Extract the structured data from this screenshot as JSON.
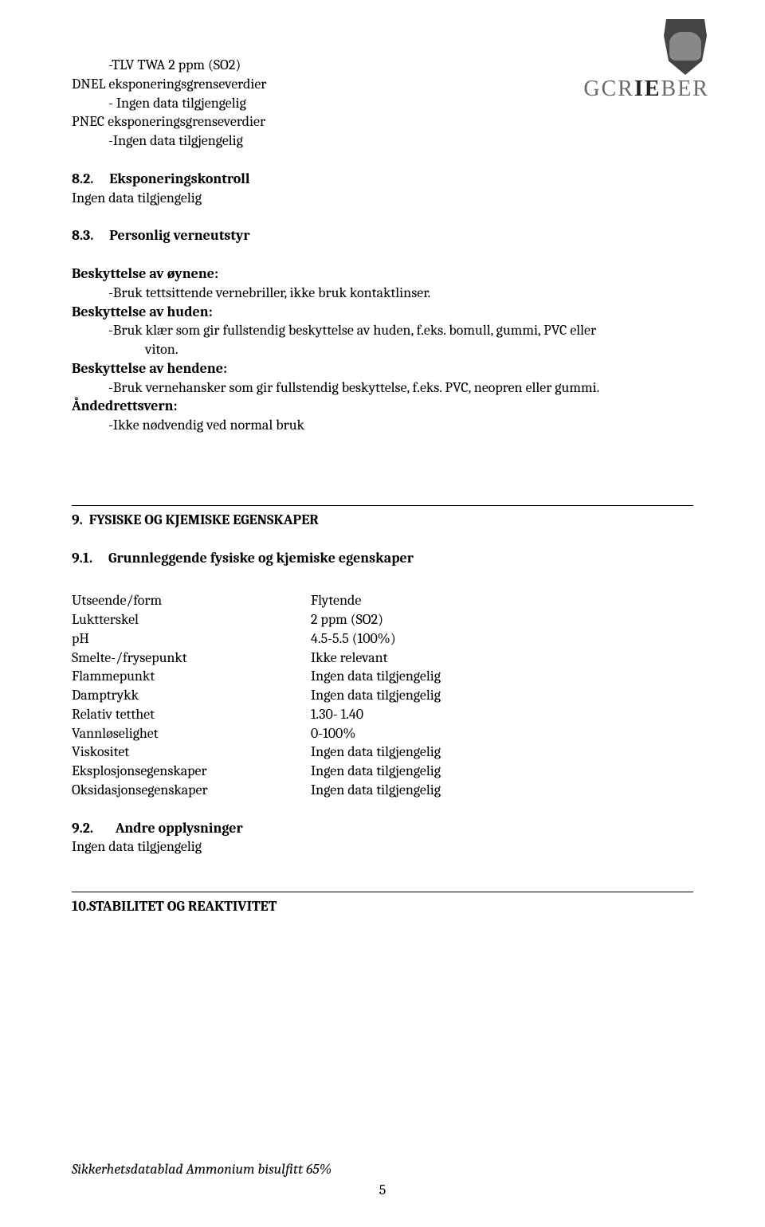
{
  "brand_name": "GCRIEBER",
  "top": {
    "line1": "-TLV TWA 2 ppm (SO2)",
    "line2": "DNEL eksponeringsgrenseverdier",
    "line3": "- Ingen data tilgjengelig",
    "line4": "PNEC eksponeringsgrenseverdier",
    "line5": "-Ingen data tilgjengelig"
  },
  "s82": {
    "num": "8.2.",
    "title": "Eksponeringskontroll",
    "body": "Ingen data tilgjengelig"
  },
  "s83": {
    "num": "8.3.",
    "title": "Personlig verneutstyr",
    "eyes_h": "Beskyttelse av øynene:",
    "eyes_b": "-Bruk tettsittende vernebriller, ikke bruk kontaktlinser.",
    "skin_h": "Beskyttelse av huden:",
    "skin_b1": "-Bruk klær som gir fullstendig beskyttelse av huden, f.eks. bomull, gummi, PVC eller",
    "skin_b2": "viton.",
    "hands_h": "Beskyttelse av hendene:",
    "hands_b": "-Bruk vernehansker som gir fullstendig beskyttelse, f.eks. PVC, neopren eller gummi.",
    "resp_h": "Åndedrettsvern:",
    "resp_b": "-Ikke nødvendig ved normal bruk"
  },
  "s9": {
    "num": "9.",
    "title": "FYSISKE OG KJEMISKE EGENSKAPER"
  },
  "s91": {
    "num": "9.1.",
    "title": "Grunnleggende fysiske og kjemiske egenskaper"
  },
  "props": {
    "l0": "Utseende/form",
    "v0": "Flytende",
    "l1": "Luktterskel",
    "v1": "2 ppm (SO2)",
    "l2": "pH",
    "v2": "4.5-5.5 (100%)",
    "l3": "Smelte-/frysepunkt",
    "v3": "Ikke relevant",
    "l4": "Flammepunkt",
    "v4": "Ingen data tilgjengelig",
    "l5": "Damptrykk",
    "v5": "Ingen data tilgjengelig",
    "l6": "Relativ tetthet",
    "v6": "1.30- 1.40",
    "l7": "Vannløselighet",
    "v7": "0-100%",
    "l8": "Viskositet",
    "v8": "Ingen data tilgjengelig",
    "l9": "Eksplosjonsegenskaper",
    "v9": "Ingen data tilgjengelig",
    "l10": "Oksidasjonsegenskaper",
    "v10": "Ingen data tilgjengelig"
  },
  "s92": {
    "num": "9.2.",
    "title": "Andre opplysninger",
    "body": "Ingen data tilgjengelig"
  },
  "s10": {
    "num": "10.",
    "title": "STABILITET OG REAKTIVITET"
  },
  "footer": "Sikkerhetsdatablad Ammonium bisulfitt 65%",
  "page_number": "5"
}
